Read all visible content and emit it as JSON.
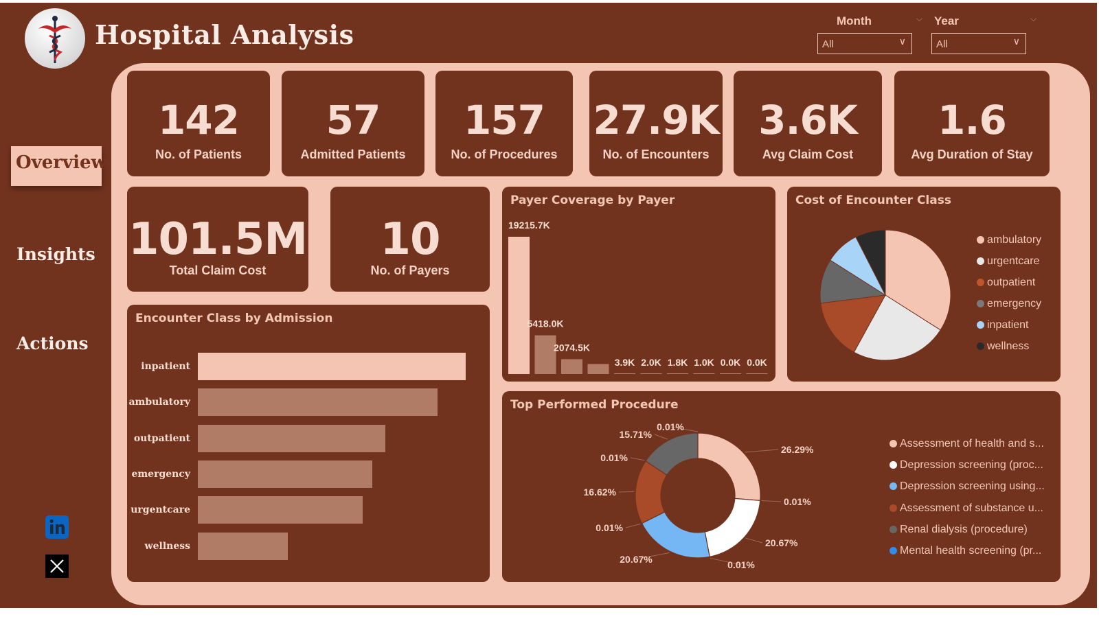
{
  "header": {
    "title": "Hospital Analysis",
    "logo_icon": "caduceus-icon"
  },
  "slicers": {
    "month": {
      "label": "Month",
      "value": "All"
    },
    "year": {
      "label": "Year",
      "value": "All"
    }
  },
  "nav": {
    "items": [
      {
        "label": "Overview",
        "active": true
      },
      {
        "label": "Insights",
        "active": false
      },
      {
        "label": "Actions",
        "active": false
      }
    ]
  },
  "social": {
    "linkedin_icon": "linkedin-icon",
    "x_icon": "x-icon"
  },
  "kpis": [
    {
      "value": "142",
      "label": "No. of Patients"
    },
    {
      "value": "57",
      "label": "Admitted Patients"
    },
    {
      "value": "157",
      "label": "No. of Procedures"
    },
    {
      "value": "27.9K",
      "label": "No. of Encounters"
    },
    {
      "value": "3.6K",
      "label": "Avg Claim Cost"
    },
    {
      "value": "1.6",
      "label": "Avg Duration of Stay"
    },
    {
      "value": "101.5M",
      "label": "Total Claim Cost"
    },
    {
      "value": "10",
      "label": "No. of Payers"
    }
  ],
  "colors": {
    "background": "#72331e",
    "panel": "#f4c5b2",
    "bar_primary": "#f4c5b2",
    "bar_secondary": "#b07c66"
  },
  "chart_data": [
    {
      "type": "bar",
      "orientation": "horizontal",
      "title": "Encounter Class by Admission",
      "categories": [
        "inpatient",
        "ambulatory",
        "outpatient",
        "emergency",
        "urgentcare",
        "wellness"
      ],
      "values": [
        100,
        89.5,
        70,
        65,
        61.5,
        33.5
      ],
      "grid": false
    },
    {
      "type": "bar",
      "title": "Payer Coverage by Payer",
      "values": [
        19215.7,
        5418.0,
        2074.5,
        1400,
        3.9,
        2.0,
        1.8,
        1.0,
        0.0,
        0.0
      ],
      "data_labels": [
        "19215.7K",
        "5418.0K",
        "2074.5K",
        "",
        "3.9K",
        "2.0K",
        "1.8K",
        "1.0K",
        "0.0K",
        "0.0K"
      ],
      "grid": false
    },
    {
      "type": "pie",
      "title": "Cost of Encounter Class",
      "legend_position": "right",
      "slices": [
        {
          "name": "ambulatory",
          "value": 34,
          "color": "#f4c5b2"
        },
        {
          "name": "urgentcare",
          "value": 24,
          "color": "#e8e8e8"
        },
        {
          "name": "outpatient",
          "value": 15,
          "color": "#a94a28"
        },
        {
          "name": "emergency",
          "value": 11,
          "color": "#676767"
        },
        {
          "name": "inpatient",
          "value": 8.5,
          "color": "#a8d4f8"
        },
        {
          "name": "wellness",
          "value": 7.5,
          "color": "#2a2a2a"
        }
      ]
    },
    {
      "type": "pie",
      "variant": "donut",
      "title": "Top Performed Procedure",
      "legend_position": "right",
      "slices": [
        {
          "name": "Assessment of health and s...",
          "value": 26.29,
          "label": "26.29%",
          "color": "#f4c5b2"
        },
        {
          "name": "",
          "value": 0.01,
          "label": "0.01%",
          "color": "#f4c5b2"
        },
        {
          "name": "Depression screening (proc...",
          "value": 20.67,
          "label": "20.67%",
          "color": "#ffffff"
        },
        {
          "name": "",
          "value": 0.01,
          "label": "0.01%",
          "color": "#ffffff"
        },
        {
          "name": "Depression screening using...",
          "value": 20.67,
          "label": "20.67%",
          "color": "#74b7f4"
        },
        {
          "name": "",
          "value": 0.01,
          "label": "0.01%",
          "color": "#74b7f4"
        },
        {
          "name": "Assessment of substance u...",
          "value": 16.62,
          "label": "16.62%",
          "color": "#a94a28"
        },
        {
          "name": "",
          "value": 0.01,
          "label": "0.01%",
          "color": "#a94a28"
        },
        {
          "name": "Renal dialysis (procedure)",
          "value": 15.71,
          "label": "15.71%",
          "color": "#676767"
        },
        {
          "name": "Mental health screening (pr...",
          "value": 0.01,
          "label": "0.01%",
          "color": "#2f8cf0"
        }
      ],
      "legend": [
        {
          "name": "Assessment of health and s...",
          "color": "#f4c5b2"
        },
        {
          "name": "Depression screening (proc...",
          "color": "#ffffff"
        },
        {
          "name": "Depression screening using...",
          "color": "#74b7f4"
        },
        {
          "name": "Assessment of substance u...",
          "color": "#a94a28"
        },
        {
          "name": "Renal dialysis (procedure)",
          "color": "#676767"
        },
        {
          "name": "Mental health screening (pr...",
          "color": "#2f8cf0"
        }
      ]
    }
  ]
}
